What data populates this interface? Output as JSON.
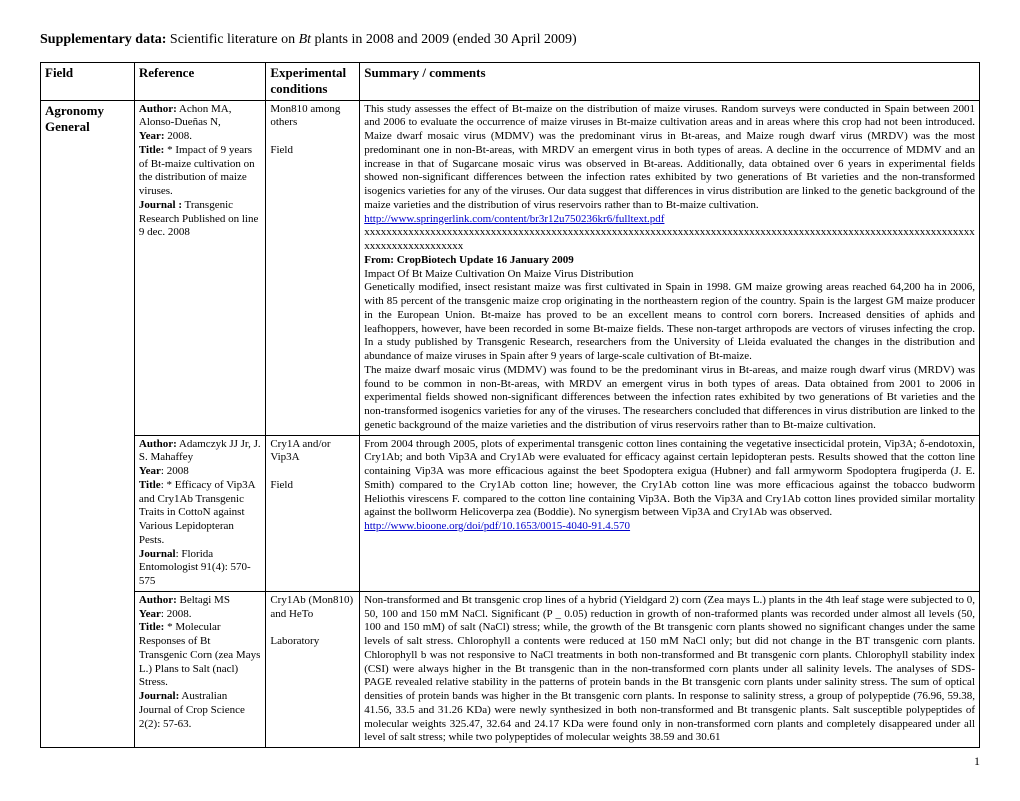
{
  "title": {
    "prefix": "Supplementary data:",
    "text_before_ital": " Scientific literature on ",
    "ital": "Bt",
    "text_after_ital": " plants in 2008 and 2009 (ended 30 April 2009)"
  },
  "headers": {
    "field": "Field",
    "reference": "Reference",
    "experiment": "Experimental conditions",
    "summary": "Summary / comments"
  },
  "page_number": "1",
  "field_group": "Agronomy General",
  "rows": [
    {
      "reference": {
        "author_label": "Author:",
        "author": " Achon MA, Alonso-Dueñas N,",
        "year_label": "Year:",
        "year": " 2008.",
        "title_label": "Title:",
        "title": " * Impact of 9 years of Bt-maize cultivation on the distribution of maize viruses.",
        "journal_label": "Journal :",
        "journal": " Transgenic Research Published on line 9 dec. 2008"
      },
      "experiment": "Mon810 among others\n\nField",
      "summary": {
        "p1": "This study assesses the effect of Bt-maize on the distribution of maize viruses. Random surveys were conducted in Spain between 2001 and 2006 to evaluate the occurrence of maize viruses in Bt-maize cultivation areas and in areas where this crop had not been introduced. Maize dwarf mosaic virus (MDMV) was the predominant virus in Bt-areas, and Maize rough dwarf virus (MRDV) was the most predominant one in non-Bt-areas, with MRDV an emergent virus in both types of areas. A decline in the occurrence of MDMV and an increase in that of Sugarcane mosaic virus was observed in Bt-areas. Additionally, data obtained over 6 years in experimental fields showed non-significant differences between the infection rates exhibited by two generations of Bt varieties and the non-transformed isogenics varieties for any of the viruses. Our data suggest that differences in virus distribution are linked to the genetic background of the maize varieties and the distribution of virus reservoirs rather than to Bt-maize cultivation.",
        "link": "http://www.springerlink.com/content/br3r12u750236kr6/fulltext.pdf",
        "xxx": "xxxxxxxxxxxxxxxxxxxxxxxxxxxxxxxxxxxxxxxxxxxxxxxxxxxxxxxxxxxxxxxxxxxxxxxxxxxxxxxxxxxxxxxxxxxxxxxxxxxxxxxxxxxxxxxxxxxxxxxxxxxxxxxxx",
        "from_label": "From: CropBiotech Update 16 January 2009",
        "sub_title": "Impact Of Bt Maize Cultivation On Maize Virus Distribution",
        "p2": "Genetically modified, insect resistant maize was first cultivated in Spain in 1998. GM maize growing areas reached 64,200 ha in 2006, with 85 percent of the transgenic maize crop originating in the northeastern region of the country. Spain is the largest GM maize producer in the European Union. Bt-maize has proved to be an excellent means to control corn borers. Increased densities of aphids and leafhoppers, however, have been recorded in some Bt-maize fields. These non-target arthropods are vectors of viruses infecting the crop. In a study published by Transgenic Research, researchers from the University of Lleida evaluated the changes in the distribution and abundance of maize viruses in Spain after 9 years of large-scale cultivation of Bt-maize.",
        "p3": "The maize dwarf mosaic virus (MDMV) was found to be the predominant virus in Bt-areas, and maize rough dwarf virus (MRDV) was found to be common in non-Bt-areas, with MRDV an emergent virus in both types of areas. Data obtained from 2001 to 2006 in experimental fields showed non-significant differences between the infection rates exhibited by two generations of Bt varieties and the non-transformed isogenics varieties for any of the viruses. The researchers concluded that differences in virus distribution are linked to the genetic background of the maize varieties and the distribution of virus reservoirs rather than to Bt-maize cultivation."
      }
    },
    {
      "reference": {
        "author_label": "Author:",
        "author": " Adamczyk JJ Jr, J. S. Mahaffey",
        "year_label": "Year",
        "year": ": 2008",
        "title_label": "Title",
        "title": ": * Efficacy of Vip3A and Cry1Ab Transgenic Traits in CottoN against Various Lepidopteran Pests.",
        "journal_label": "Journal",
        "journal": ": Florida Entomologist 91(4): 570-575"
      },
      "experiment": "Cry1A and/or Vip3A\n\nField",
      "summary": {
        "p1": "From 2004 through 2005, plots of experimental transgenic cotton lines containing the vegetative insecticidal protein, Vip3A; δ-endotoxin, Cry1Ab; and both Vip3A and Cry1Ab were evaluated for efficacy against certain lepidopteran pests. Results showed that the cotton line containing Vip3A was more efficacious against the beet Spodoptera exigua (Hubner) and fall armyworm Spodoptera frugiperda (J. E. Smith) compared to the Cry1Ab cotton line; however, the Cry1Ab cotton line was more efficacious against the tobacco budworm Heliothis virescens F. compared to the cotton line containing Vip3A. Both the Vip3A and Cry1Ab cotton lines provided similar mortality against the bollworm Helicoverpa zea (Boddie). No synergism between Vip3A and Cry1Ab was observed.",
        "link": "http://www.bioone.org/doi/pdf/10.1653/0015-4040-91.4.570"
      }
    },
    {
      "reference": {
        "author_label": "Author:",
        "author": " Beltagi MS",
        "year_label": "Year",
        "year": ": 2008.",
        "title_label": "Title:",
        "title": " * Molecular Responses of Bt Transgenic Corn (zea Mays L.) Plans to Salt (nacl) Stress.",
        "journal_label": "Journal:",
        "journal": " Australian Journal of Crop Science 2(2): 57-63."
      },
      "experiment": "Cry1Ab (Mon810) and HeTo\n\nLaboratory",
      "summary": {
        "p1": "Non-transformed and Bt transgenic crop lines of a hybrid (Yieldgard 2) corn (Zea mays L.) plants in the 4th leaf stage were subjected to 0, 50, 100 and 150 mM NaCl. Significant (P _ 0.05) reduction in growth of non-traformed plants was recorded under almost all levels (50, 100 and 150 mM) of salt (NaCl) stress; while, the growth of the Bt transgenic corn plants showed no significant changes under the same levels of salt stress. Chlorophyll a contents were reduced at 150 mM NaCl only; but did not change in the BT transgenic corn plants. Chlorophyll b was not responsive to NaCl treatments in both non-transformed and Bt transgenic corn plants. Chlorophyll stability index (CSI) were always higher in the Bt transgenic than in the non-transformed corn plants under all salinity levels. The analyses of SDS-PAGE revealed relative stability in the patterns of protein bands in the Bt transgenic corn plants under salinity stress. The sum of optical densities of protein bands was higher in the Bt transgenic corn plants. In response to salinity stress, a group of polypeptide (76.96, 59.38, 41.56, 33.5 and 31.26 KDa) were newly synthesized in both non-transformed and Bt transgenic plants. Salt susceptible polypeptides of molecular weights 325.47, 32.64 and 24.17 KDa were found only in non-transformed corn plants and completely disappeared under all level of salt stress; while two polypeptides of molecular weights 38.59 and 30.61"
      }
    }
  ]
}
